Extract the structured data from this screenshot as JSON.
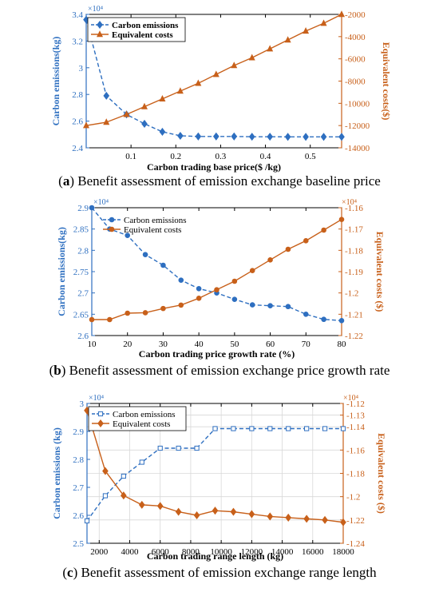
{
  "colors": {
    "emissions": "#2e6fc0",
    "costs": "#c8601a"
  },
  "chart_data": [
    {
      "type": "line",
      "caption": {
        "prefix": "(",
        "letter": "a",
        "suffix": ") Benefit assessment of emission exchange baseline price"
      },
      "xlabel": "Carbon trading base price($ /kg)",
      "ylabel_left": "Carbon emissions(kg)",
      "ylabel_right": "Equivalent costs($)",
      "left_exponent": "×10⁴",
      "right_exponent": "",
      "xlim": [
        0,
        0.57
      ],
      "xticks": [
        0.1,
        0.2,
        0.3,
        0.4,
        0.5
      ],
      "xtick_labels": [
        "0.1",
        "0.2",
        "0.3",
        "0.4",
        "0.5"
      ],
      "ylim_left": [
        2.4,
        3.4
      ],
      "yticks_left": [
        2.4,
        2.6,
        2.8,
        3,
        3.2,
        3.4
      ],
      "ytick_labels_left": [
        "2.4",
        "2.6",
        "2.8",
        "3",
        "3.2",
        "3.4"
      ],
      "ylim_right": [
        -14000,
        -2000
      ],
      "yticks_right": [
        -14000,
        -12000,
        -10000,
        -8000,
        -6000,
        -4000,
        -2000
      ],
      "ytick_labels_right": [
        "-14000",
        "-12000",
        "-10000",
        "-8000",
        "-6000",
        "-4000",
        "-2000"
      ],
      "grid": false,
      "legend_position": "top-left",
      "legend_bold": true,
      "series": [
        {
          "name": "Carbon emissions",
          "axis": "left",
          "marker": "diamond",
          "dashed": true,
          "x": [
            0,
            0.045,
            0.09,
            0.13,
            0.17,
            0.21,
            0.25,
            0.29,
            0.33,
            0.37,
            0.41,
            0.45,
            0.49,
            0.53,
            0.57
          ],
          "y": [
            3.36,
            2.79,
            2.65,
            2.58,
            2.52,
            2.49,
            2.485,
            2.485,
            2.485,
            2.483,
            2.483,
            2.482,
            2.482,
            2.482,
            2.482
          ]
        },
        {
          "name": "Equivalent costs",
          "axis": "right",
          "marker": "triangle",
          "dashed": false,
          "x": [
            0,
            0.045,
            0.09,
            0.13,
            0.17,
            0.21,
            0.25,
            0.29,
            0.33,
            0.37,
            0.41,
            0.45,
            0.49,
            0.53,
            0.57
          ],
          "y": [
            -12000,
            -11700,
            -11000,
            -10300,
            -9600,
            -8900,
            -8200,
            -7400,
            -6600,
            -5900,
            -5100,
            -4300,
            -3500,
            -2800,
            -2000
          ]
        }
      ]
    },
    {
      "type": "line",
      "caption": {
        "prefix": "(",
        "letter": "b",
        "suffix": ") Benefit assessment of emission exchange price growth rate"
      },
      "xlabel": "Carbon trading price growth rate (%)",
      "ylabel_left": "Carbon emissions(kg)",
      "ylabel_right": "Equivalent costs ($)",
      "left_exponent": "×10⁴",
      "right_exponent": "×10⁴",
      "xlim": [
        10,
        80
      ],
      "xticks": [
        10,
        20,
        30,
        40,
        50,
        60,
        70,
        80
      ],
      "xtick_labels": [
        "10",
        "20",
        "30",
        "40",
        "50",
        "60",
        "70",
        "80"
      ],
      "ylim_left": [
        2.6,
        2.9
      ],
      "yticks_left": [
        2.6,
        2.65,
        2.7,
        2.75,
        2.8,
        2.85,
        2.9
      ],
      "ytick_labels_left": [
        "2.6",
        "2.65",
        "2.7",
        "2.75",
        "2.8",
        "2.85",
        "2.9"
      ],
      "ylim_right": [
        -1.22,
        -1.16
      ],
      "yticks_right": [
        -1.22,
        -1.21,
        -1.2,
        -1.19,
        -1.18,
        -1.17,
        -1.16
      ],
      "ytick_labels_right": [
        "-1.22",
        "-1.21",
        "-1.2",
        "-1.19",
        "-1.18",
        "-1.17",
        "-1.16"
      ],
      "grid": false,
      "legend_position": "top-center",
      "legend_bold": false,
      "series": [
        {
          "name": "Carbon emissions",
          "axis": "left",
          "marker": "circle",
          "dashed": true,
          "x": [
            10,
            15,
            20,
            25,
            30,
            35,
            40,
            45,
            50,
            55,
            60,
            65,
            70,
            75,
            80
          ],
          "y": [
            2.9,
            2.85,
            2.835,
            2.79,
            2.765,
            2.73,
            2.71,
            2.7,
            2.685,
            2.672,
            2.67,
            2.668,
            2.65,
            2.638,
            2.635
          ]
        },
        {
          "name": "Equivalent costs",
          "axis": "right",
          "marker": "circle",
          "dashed": false,
          "x": [
            10,
            15,
            20,
            25,
            30,
            35,
            40,
            45,
            50,
            55,
            60,
            65,
            70,
            75,
            80
          ],
          "y": [
            -1.2125,
            -1.2125,
            -1.2095,
            -1.2093,
            -1.2073,
            -1.2057,
            -1.2025,
            -1.1985,
            -1.1945,
            -1.1895,
            -1.1845,
            -1.1795,
            -1.1755,
            -1.1705,
            -1.1655
          ]
        }
      ]
    },
    {
      "type": "line",
      "caption": {
        "prefix": "(",
        "letter": "c",
        "suffix": ") Benefit assessment of emission exchange range length"
      },
      "xlabel": "Carbon trading range length (kg)",
      "ylabel_left": "Carbon emissions (kg)",
      "ylabel_right": "Equivalent costs ($)",
      "left_exponent": "×10⁴",
      "right_exponent": "×10⁴",
      "xlim": [
        1200,
        18000
      ],
      "xticks": [
        2000,
        4000,
        6000,
        8000,
        10000,
        12000,
        14000,
        16000,
        18000
      ],
      "xtick_labels": [
        "2000",
        "4000",
        "6000",
        "8000",
        "10000",
        "12000",
        "14000",
        "16000",
        "18000"
      ],
      "ylim_left": [
        2.5,
        3.0
      ],
      "yticks_left": [
        2.5,
        2.6,
        2.7,
        2.8,
        2.9,
        3.0
      ],
      "ytick_labels_left": [
        "2.5",
        "2.6",
        "2.7",
        "2.8",
        "2.9",
        "3"
      ],
      "ylim_right": [
        -1.24,
        -1.12
      ],
      "yticks_right": [
        -1.24,
        -1.22,
        -1.2,
        -1.18,
        -1.16,
        -1.14,
        -1.13,
        -1.12
      ],
      "ytick_labels_right": [
        "-1.24",
        "-1.22",
        "-1.2",
        "-1.18",
        "-1.16",
        "-1.14",
        "-1.13",
        "-1.12"
      ],
      "grid": true,
      "legend_position": "top-left",
      "legend_bold": false,
      "series": [
        {
          "name": "Carbon emissions",
          "axis": "left",
          "marker": "square",
          "dashed": true,
          "x": [
            1200,
            2400,
            3600,
            4800,
            6000,
            7200,
            8400,
            9600,
            10800,
            12000,
            13200,
            14400,
            15600,
            16800,
            18000
          ],
          "y": [
            2.58,
            2.67,
            2.74,
            2.79,
            2.84,
            2.84,
            2.84,
            2.91,
            2.91,
            2.91,
            2.91,
            2.91,
            2.91,
            2.91,
            2.91
          ]
        },
        {
          "name": "Equivalent costs",
          "axis": "right",
          "marker": "diamond",
          "dashed": false,
          "x": [
            1200,
            2400,
            3600,
            4800,
            6000,
            7200,
            8400,
            9600,
            10800,
            12000,
            13200,
            14400,
            15600,
            16800,
            18000
          ],
          "y": [
            -1.126,
            -1.178,
            -1.199,
            -1.207,
            -1.208,
            -1.213,
            -1.216,
            -1.212,
            -1.213,
            -1.215,
            -1.217,
            -1.218,
            -1.219,
            -1.22,
            -1.222
          ]
        }
      ]
    }
  ]
}
